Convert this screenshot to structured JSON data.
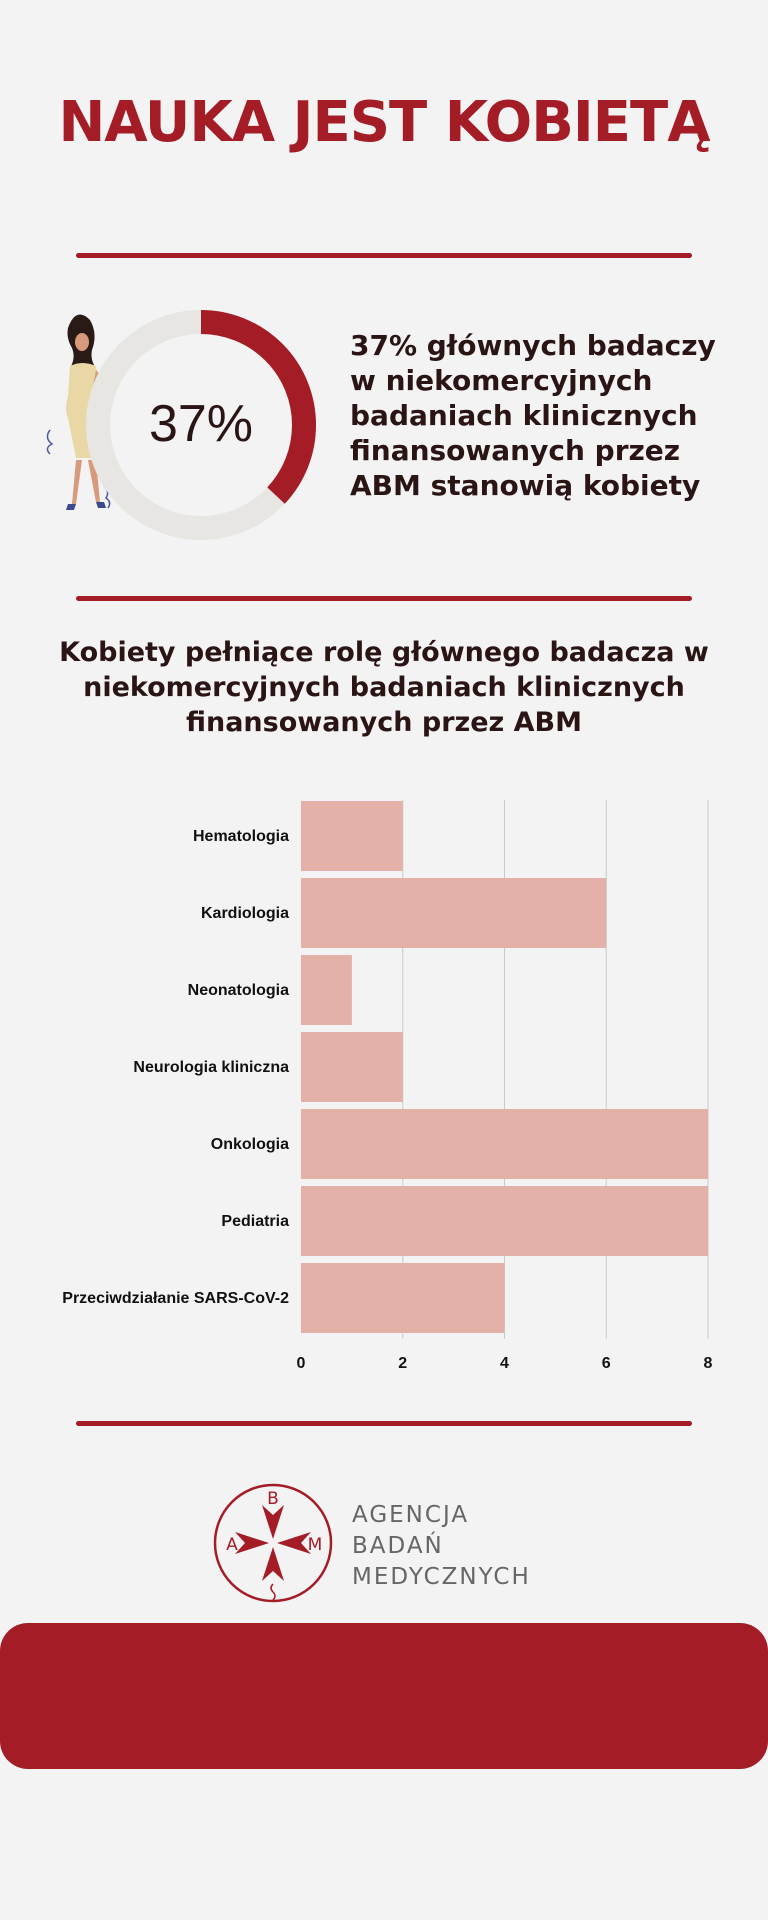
{
  "page": {
    "title": "NAUKA JEST KOBIETĄ",
    "colors": {
      "accent": "#a41c25",
      "bar": "#e3b1a7",
      "track": "#e7e6e2",
      "text": "#2a1414"
    }
  },
  "donut": {
    "value_label": "37%",
    "percent": 37,
    "description": "37% głównych badaczy w niekomercyjnych badaniach klinicznych finansowanych przez ABM stanowią kobiety",
    "illustration": "woman-illustration"
  },
  "chart_title": "Kobiety pełniące rolę głównego badacza w niekomercyjnych badaniach klinicznych finansowanych przez ABM",
  "chart_data": {
    "type": "bar",
    "orientation": "horizontal",
    "categories": [
      "Hematologia",
      "Kardiologia",
      "Neonatologia",
      "Neurologia kliniczna",
      "Onkologia",
      "Pediatria",
      "Przeciwdziałanie SARS-CoV-2"
    ],
    "values": [
      2,
      6,
      1,
      2,
      8,
      8,
      4
    ],
    "xlim": [
      0,
      8
    ],
    "ticks": [
      0,
      2,
      4,
      6,
      8
    ],
    "grid": true,
    "legend": "none"
  },
  "logo": {
    "letters": [
      "B",
      "A",
      "M"
    ],
    "text_lines": [
      "AGENCJA",
      "BADAŃ",
      "MEDYCZNYCH"
    ]
  }
}
